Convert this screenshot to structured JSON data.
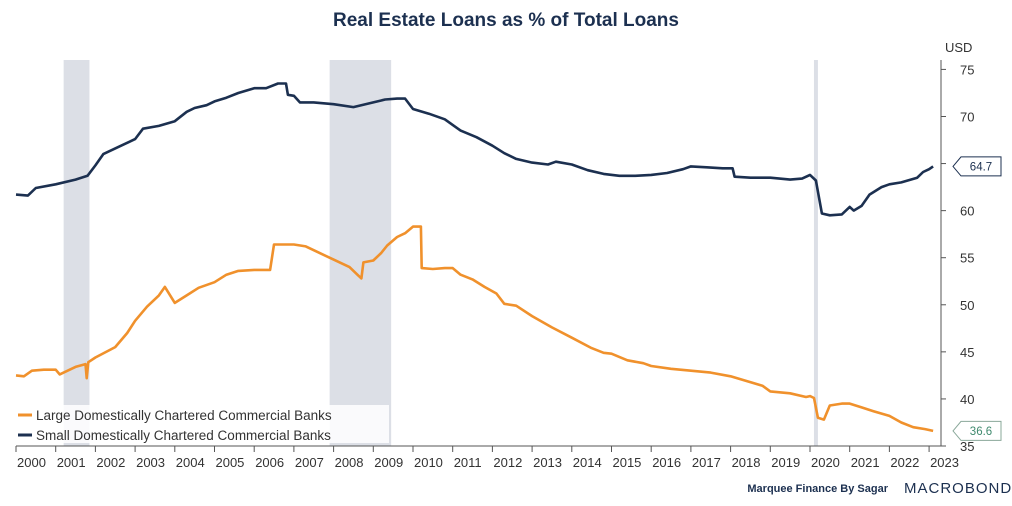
{
  "chart_data": {
    "type": "line",
    "title": "Real Estate Loans as % of Total Loans",
    "unit_label": "USD",
    "x_axis": {
      "type": "time",
      "range": [
        2000.0,
        2023.3
      ],
      "ticks": [
        2000,
        2001,
        2002,
        2003,
        2004,
        2005,
        2006,
        2007,
        2008,
        2009,
        2010,
        2011,
        2012,
        2013,
        2014,
        2015,
        2016,
        2017,
        2018,
        2019,
        2020,
        2021,
        2022,
        2023
      ],
      "tick_labels": [
        "2000",
        "2001",
        "2002",
        "2003",
        "2004",
        "2005",
        "2006",
        "2007",
        "2008",
        "2009",
        "2010",
        "2011",
        "2012",
        "2013",
        "2014",
        "2015",
        "2016",
        "2017",
        "2018",
        "2019",
        "2020",
        "2021",
        "2022",
        "2023"
      ]
    },
    "y_axis": {
      "position": "right",
      "range": [
        35,
        76
      ],
      "ticks": [
        35,
        40,
        45,
        50,
        55,
        60,
        65,
        70,
        75
      ],
      "tick_labels": [
        "35",
        "40",
        "45",
        "50",
        "55",
        "60",
        "65",
        "70",
        "75"
      ]
    },
    "recessions": [
      [
        2001.2,
        2001.85
      ],
      [
        2007.9,
        2009.45
      ],
      [
        2020.1,
        2020.2
      ]
    ],
    "series": [
      {
        "name": "Small Domestically Chartered Commercial Banks",
        "color": "#1c3050",
        "last_value": "64.7",
        "points": [
          [
            2000.0,
            61.7
          ],
          [
            2000.3,
            61.6
          ],
          [
            2000.5,
            62.4
          ],
          [
            2001.0,
            62.8
          ],
          [
            2001.5,
            63.3
          ],
          [
            2001.8,
            63.7
          ],
          [
            2002.0,
            64.8
          ],
          [
            2002.2,
            66.0
          ],
          [
            2002.6,
            66.8
          ],
          [
            2003.0,
            67.6
          ],
          [
            2003.2,
            68.7
          ],
          [
            2003.6,
            69.0
          ],
          [
            2004.0,
            69.5
          ],
          [
            2004.3,
            70.5
          ],
          [
            2004.5,
            70.9
          ],
          [
            2004.8,
            71.2
          ],
          [
            2005.0,
            71.6
          ],
          [
            2005.3,
            72.0
          ],
          [
            2005.6,
            72.5
          ],
          [
            2006.0,
            73.0
          ],
          [
            2006.3,
            73.0
          ],
          [
            2006.6,
            73.5
          ],
          [
            2006.8,
            73.5
          ],
          [
            2006.85,
            72.3
          ],
          [
            2007.0,
            72.2
          ],
          [
            2007.15,
            71.5
          ],
          [
            2007.5,
            71.5
          ],
          [
            2008.0,
            71.3
          ],
          [
            2008.5,
            71.0
          ],
          [
            2009.0,
            71.5
          ],
          [
            2009.3,
            71.8
          ],
          [
            2009.6,
            71.9
          ],
          [
            2009.8,
            71.9
          ],
          [
            2010.0,
            70.8
          ],
          [
            2010.4,
            70.3
          ],
          [
            2010.8,
            69.7
          ],
          [
            2011.2,
            68.5
          ],
          [
            2011.6,
            67.8
          ],
          [
            2012.0,
            66.9
          ],
          [
            2012.3,
            66.1
          ],
          [
            2012.6,
            65.5
          ],
          [
            2013.0,
            65.1
          ],
          [
            2013.4,
            64.9
          ],
          [
            2013.6,
            65.2
          ],
          [
            2014.0,
            64.9
          ],
          [
            2014.4,
            64.3
          ],
          [
            2014.8,
            63.9
          ],
          [
            2015.2,
            63.7
          ],
          [
            2015.6,
            63.7
          ],
          [
            2016.0,
            63.8
          ],
          [
            2016.4,
            64.0
          ],
          [
            2016.8,
            64.4
          ],
          [
            2017.0,
            64.7
          ],
          [
            2017.4,
            64.6
          ],
          [
            2017.8,
            64.5
          ],
          [
            2018.05,
            64.5
          ],
          [
            2018.1,
            63.6
          ],
          [
            2018.5,
            63.5
          ],
          [
            2019.0,
            63.5
          ],
          [
            2019.5,
            63.3
          ],
          [
            2019.8,
            63.4
          ],
          [
            2020.0,
            63.8
          ],
          [
            2020.15,
            63.2
          ],
          [
            2020.3,
            59.7
          ],
          [
            2020.5,
            59.5
          ],
          [
            2020.8,
            59.6
          ],
          [
            2021.0,
            60.4
          ],
          [
            2021.1,
            60.0
          ],
          [
            2021.3,
            60.5
          ],
          [
            2021.5,
            61.7
          ],
          [
            2021.8,
            62.5
          ],
          [
            2022.0,
            62.8
          ],
          [
            2022.3,
            63.0
          ],
          [
            2022.7,
            63.5
          ],
          [
            2022.85,
            64.1
          ],
          [
            2023.0,
            64.4
          ],
          [
            2023.1,
            64.7
          ]
        ]
      },
      {
        "name": "Large Domestically Chartered Commercial Banks",
        "color": "#f0912c",
        "last_value": "36.6",
        "points": [
          [
            2000.0,
            42.5
          ],
          [
            2000.2,
            42.4
          ],
          [
            2000.4,
            43.0
          ],
          [
            2000.7,
            43.1
          ],
          [
            2001.0,
            43.1
          ],
          [
            2001.1,
            42.6
          ],
          [
            2001.5,
            43.4
          ],
          [
            2001.75,
            43.7
          ],
          [
            2001.78,
            42.2
          ],
          [
            2001.82,
            43.9
          ],
          [
            2002.0,
            44.4
          ],
          [
            2002.5,
            45.5
          ],
          [
            2002.8,
            47.0
          ],
          [
            2003.0,
            48.3
          ],
          [
            2003.3,
            49.8
          ],
          [
            2003.6,
            51.0
          ],
          [
            2003.75,
            51.9
          ],
          [
            2004.0,
            50.2
          ],
          [
            2004.3,
            51.0
          ],
          [
            2004.6,
            51.8
          ],
          [
            2005.0,
            52.4
          ],
          [
            2005.3,
            53.2
          ],
          [
            2005.6,
            53.6
          ],
          [
            2006.0,
            53.7
          ],
          [
            2006.4,
            53.7
          ],
          [
            2006.5,
            56.4
          ],
          [
            2007.0,
            56.4
          ],
          [
            2007.3,
            56.2
          ],
          [
            2007.6,
            55.6
          ],
          [
            2008.0,
            54.8
          ],
          [
            2008.4,
            54.0
          ],
          [
            2008.6,
            53.2
          ],
          [
            2008.7,
            52.8
          ],
          [
            2008.75,
            54.5
          ],
          [
            2009.0,
            54.7
          ],
          [
            2009.2,
            55.5
          ],
          [
            2009.35,
            56.3
          ],
          [
            2009.6,
            57.2
          ],
          [
            2009.8,
            57.6
          ],
          [
            2010.0,
            58.3
          ],
          [
            2010.2,
            58.3
          ],
          [
            2010.22,
            53.9
          ],
          [
            2010.5,
            53.8
          ],
          [
            2010.8,
            53.9
          ],
          [
            2011.0,
            53.9
          ],
          [
            2011.2,
            53.2
          ],
          [
            2011.5,
            52.7
          ],
          [
            2011.8,
            51.9
          ],
          [
            2012.1,
            51.2
          ],
          [
            2012.3,
            50.1
          ],
          [
            2012.6,
            49.9
          ],
          [
            2013.0,
            48.8
          ],
          [
            2013.5,
            47.6
          ],
          [
            2014.0,
            46.5
          ],
          [
            2014.5,
            45.4
          ],
          [
            2014.8,
            44.9
          ],
          [
            2015.0,
            44.8
          ],
          [
            2015.4,
            44.1
          ],
          [
            2015.8,
            43.8
          ],
          [
            2016.0,
            43.5
          ],
          [
            2016.5,
            43.2
          ],
          [
            2017.0,
            43.0
          ],
          [
            2017.5,
            42.8
          ],
          [
            2018.0,
            42.4
          ],
          [
            2018.4,
            41.9
          ],
          [
            2018.8,
            41.4
          ],
          [
            2019.0,
            40.8
          ],
          [
            2019.5,
            40.6
          ],
          [
            2019.9,
            40.2
          ],
          [
            2020.0,
            40.3
          ],
          [
            2020.1,
            40.1
          ],
          [
            2020.2,
            38.0
          ],
          [
            2020.35,
            37.8
          ],
          [
            2020.5,
            39.3
          ],
          [
            2020.8,
            39.5
          ],
          [
            2021.0,
            39.5
          ],
          [
            2021.3,
            39.1
          ],
          [
            2021.6,
            38.7
          ],
          [
            2022.0,
            38.2
          ],
          [
            2022.3,
            37.5
          ],
          [
            2022.6,
            37.0
          ],
          [
            2022.9,
            36.8
          ],
          [
            2023.1,
            36.6
          ]
        ]
      }
    ],
    "legend": {
      "placement": "bottom-left",
      "items": [
        {
          "label": "Large Domestically Chartered Commercial Banks",
          "color": "#f0912c"
        },
        {
          "label": "Small Domestically Chartered Commercial Banks",
          "color": "#1c3050"
        }
      ]
    },
    "grid": false
  },
  "footer": {
    "credit": "Marquee Finance By Sagar",
    "brand": "MACROBOND"
  }
}
